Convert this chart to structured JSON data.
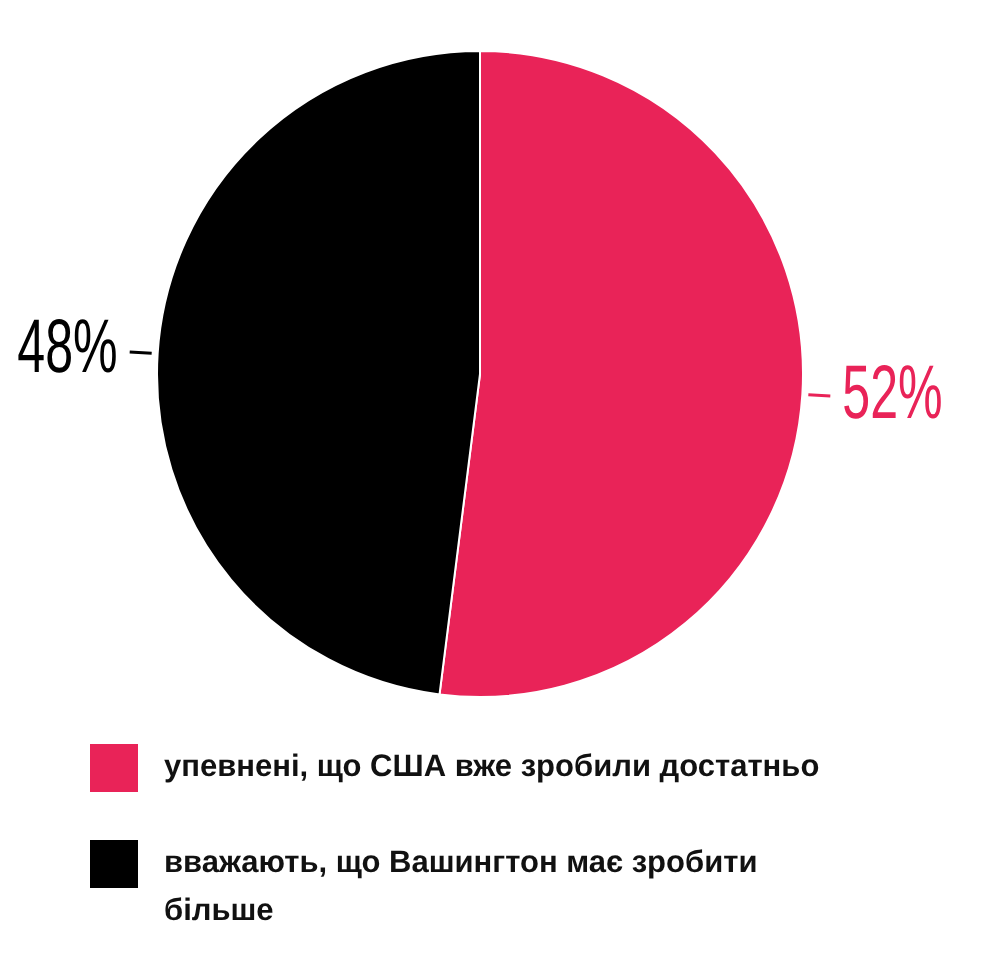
{
  "chart_data": {
    "type": "pie",
    "categories": [
      "упевнені, що США вже зробили достатньо",
      "вважають, що Вашингтон має зробити більше"
    ],
    "values": [
      52,
      48
    ],
    "colors": [
      "#e92358",
      "#000000"
    ],
    "value_labels": [
      "52%",
      "48%"
    ],
    "legend": "bottom"
  }
}
